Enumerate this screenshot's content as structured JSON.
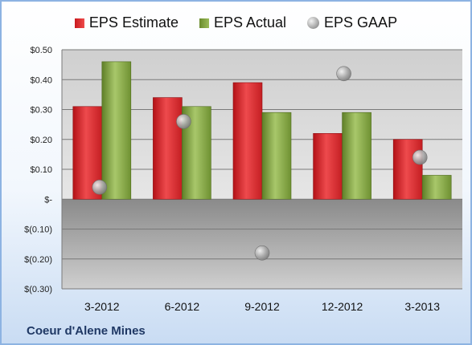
{
  "legend": {
    "estimate": "EPS Estimate",
    "actual": "EPS Actual",
    "gaap": "EPS GAAP"
  },
  "company": "Coeur d'Alene Mines",
  "colors": {
    "estimate": "#d9262b",
    "actual": "#8fae4a",
    "gaap": "#a6a6a6",
    "positive_area": "#c9c9c9",
    "negative_area": "#7f7f7f"
  },
  "chart_data": {
    "type": "bar",
    "categories": [
      "3-2012",
      "6-2012",
      "9-2012",
      "12-2012",
      "3-2013"
    ],
    "series": [
      {
        "name": "EPS Estimate",
        "type": "bar",
        "values": [
          0.31,
          0.34,
          0.39,
          0.22,
          0.2
        ]
      },
      {
        "name": "EPS Actual",
        "type": "bar",
        "values": [
          0.46,
          0.31,
          0.29,
          0.29,
          0.08
        ]
      },
      {
        "name": "EPS GAAP",
        "type": "scatter",
        "values": [
          0.04,
          0.26,
          -0.18,
          0.42,
          0.14
        ]
      }
    ],
    "ylim": [
      -0.3,
      0.5
    ],
    "yticks": [
      0.5,
      0.4,
      0.3,
      0.2,
      0.1,
      0,
      -0.1,
      -0.2,
      -0.3
    ],
    "ytick_labels": [
      "$0.50",
      "$0.40",
      "$0.30",
      "$0.20",
      "$0.10",
      "$-",
      "$(0.10)",
      "$(0.20)",
      "$(0.30)"
    ],
    "xlabel": "",
    "ylabel": "",
    "grid": true,
    "legend_position": "top"
  }
}
